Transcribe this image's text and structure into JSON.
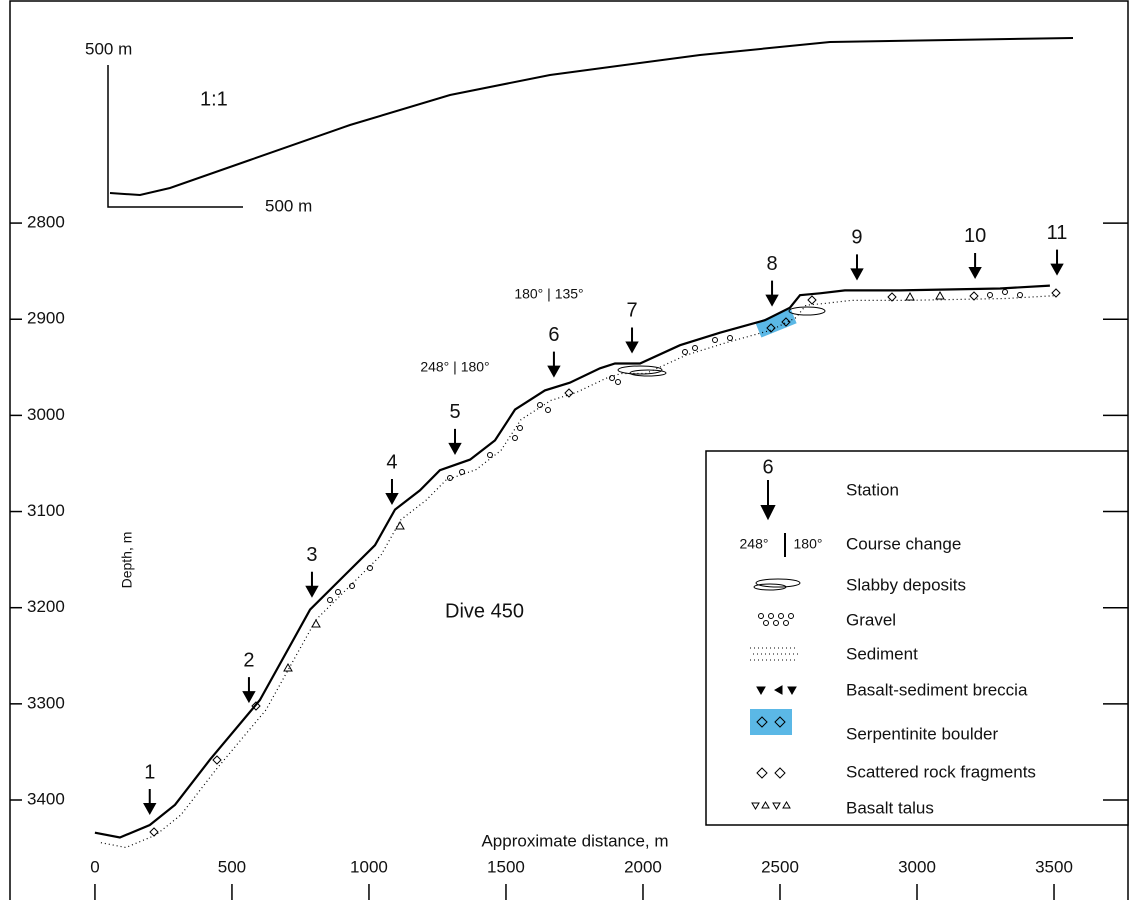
{
  "chart_data": {
    "type": "profile",
    "xlabel": "Approximate distance, m",
    "ylabel": "Depth, m",
    "annotation": "Dive 450",
    "color": "#000000",
    "xlim": [
      -310,
      3770
    ],
    "ylim": [
      2568,
      3504
    ],
    "xticks": [
      0,
      500,
      1000,
      1500,
      2000,
      2500,
      3000,
      3500
    ],
    "yticks": [
      2800,
      2900,
      3000,
      3100,
      3200,
      3300,
      3400
    ],
    "x": [
      0,
      91,
      200,
      292,
      420,
      602,
      785,
      912,
      1022,
      1095,
      1186,
      1259,
      1369,
      1460,
      1533,
      1642,
      1733,
      1843,
      1898,
      1989,
      2135,
      2281,
      2445,
      2536,
      2573,
      2646,
      2737,
      2938,
      3303,
      3485
    ],
    "values": [
      3434,
      3439,
      3426,
      3405,
      3358,
      3296,
      3202,
      3166,
      3135,
      3098,
      3078,
      3057,
      3046,
      3026,
      2994,
      2974,
      2966,
      2951,
      2946,
      2946,
      2927,
      2914,
      2901,
      2888,
      2875,
      2873,
      2870,
      2870,
      2868,
      2865
    ],
    "stations": {
      "labels": [
        "1",
        "2",
        "3",
        "4",
        "5",
        "6",
        "7",
        "8",
        "9",
        "10",
        "11"
      ],
      "x": [
        200,
        562,
        792,
        1084,
        1314,
        1675,
        1960,
        2471,
        2781,
        3212,
        3511
      ]
    },
    "course_changes": [
      "248° | 180°",
      "180° | 135°"
    ],
    "inset": {
      "scale": "1:1",
      "vertical_scale": "500 m",
      "horizontal_scale": "500 m"
    },
    "legend": {
      "station_symbol": "6",
      "course_symbol": [
        "248°",
        "180°"
      ],
      "items": [
        "Station",
        "Course change",
        "Slabby deposits",
        "Gravel",
        "Sediment",
        "Basalt-sediment breccia",
        "Serpentinite boulder",
        "Scattered rock fragments",
        "Basalt talus"
      ]
    }
  }
}
